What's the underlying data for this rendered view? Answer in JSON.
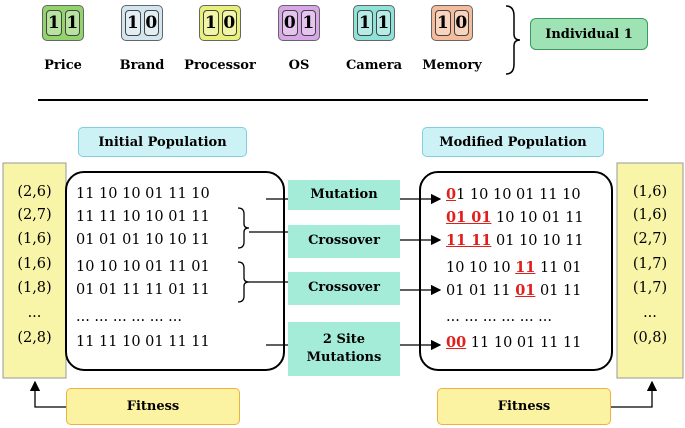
{
  "genes": [
    {
      "label": "Price",
      "bits": [
        "1",
        "1"
      ],
      "color": "#93d36c"
    },
    {
      "label": "Brand",
      "bits": [
        "1",
        "0"
      ],
      "color": "#d3e5ee"
    },
    {
      "label": "Processor",
      "bits": [
        "1",
        "0"
      ],
      "color": "#e8f07a"
    },
    {
      "label": "OS",
      "bits": [
        "0",
        "1"
      ],
      "color": "#d7a7e8"
    },
    {
      "label": "Camera",
      "bits": [
        "1",
        "1"
      ],
      "color": "#8fe2d8"
    },
    {
      "label": "Memory",
      "bits": [
        "1",
        "0"
      ],
      "color": "#f5bc9c"
    }
  ],
  "individual": "Individual 1",
  "initial_population": {
    "title": "Initial Population",
    "rows": [
      "11 10 10 01 11 10",
      "11 11 10 10 01 11",
      "01 01 01 10 10 11",
      "10 10 10 01 11 01",
      "01 01 11 11 01 11",
      "... ... ... ... ... ...",
      "11 11 10 01 11 11"
    ]
  },
  "modified_population": {
    "title": "Modified Population",
    "rows": [
      [
        {
          "text": "0",
          "highlight": true
        },
        {
          "text": "1 10 10 01 11 10"
        }
      ],
      [
        {
          "text": "01 01",
          "highlight": true
        },
        {
          "text": " 10 10 01 11"
        }
      ],
      [
        {
          "text": "11 11",
          "highlight": true
        },
        {
          "text": " 01 10 10 11"
        }
      ],
      [
        {
          "text": "10 10 10 "
        },
        {
          "text": "11",
          "highlight": true
        },
        {
          "text": " 11 01"
        }
      ],
      [
        {
          "text": "01 01 11 "
        },
        {
          "text": "01",
          "highlight": true
        },
        {
          "text": " 01 11"
        }
      ],
      [
        {
          "text": "... ... ... ... ... ..."
        }
      ],
      [
        {
          "text": "00",
          "highlight": true
        },
        {
          "text": " 11 10 01 11 11"
        }
      ]
    ]
  },
  "fitness_left": {
    "label": "Fitness",
    "values": [
      "(2,6)",
      "(2,7)",
      "(1,6)",
      "(1,6)",
      "(1,8)",
      "...",
      "(2,8)"
    ]
  },
  "fitness_right": {
    "label": "Fitness",
    "values": [
      "(1,6)",
      "(1,6)",
      "(2,7)",
      "(1,7)",
      "(1,7)",
      "...",
      "(0,8)"
    ]
  },
  "operations": [
    "Mutation",
    "Crossover",
    "Crossover",
    "2 Site Mutations"
  ]
}
